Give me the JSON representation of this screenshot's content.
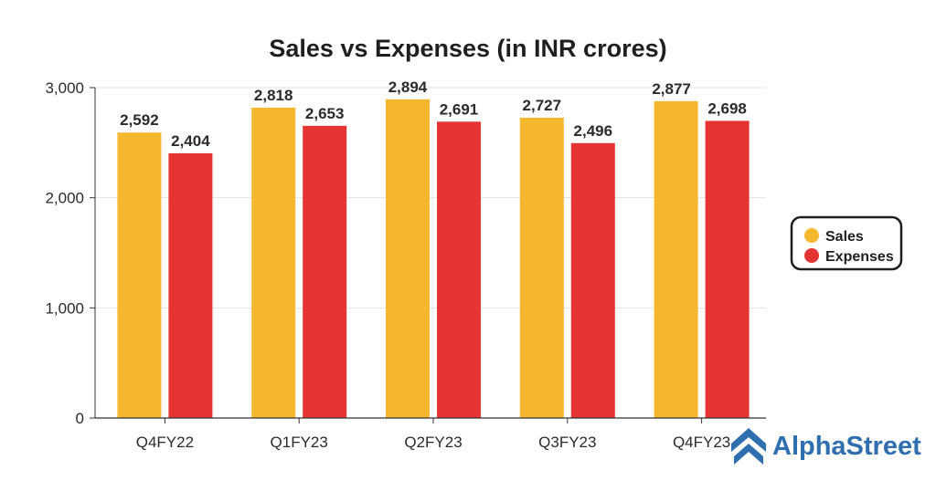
{
  "chart_data": {
    "type": "bar",
    "title": "Sales vs Expenses (in INR crores)",
    "categories": [
      "Q4FY22",
      "Q1FY23",
      "Q2FY23",
      "Q3FY23",
      "Q4FY23"
    ],
    "series": [
      {
        "name": "Sales",
        "color": "#f5b72d",
        "values": [
          2592,
          2818,
          2894,
          2727,
          2877
        ],
        "labels": [
          "2,592",
          "2,818",
          "2,894",
          "2,727",
          "2,877"
        ]
      },
      {
        "name": "Expenses",
        "color": "#e53433",
        "values": [
          2404,
          2653,
          2691,
          2496,
          2698
        ],
        "labels": [
          "2,404",
          "2,653",
          "2,691",
          "2,496",
          "2,698"
        ]
      }
    ],
    "xlabel": "",
    "ylabel": "",
    "ylim": [
      0,
      3000
    ],
    "yticks": [
      0,
      1000,
      2000,
      3000
    ],
    "ytick_labels": [
      "0",
      "1,000",
      "2,000",
      "3,000"
    ],
    "grid": true,
    "legend_position": "right"
  },
  "branding": {
    "name": "AlphaStreet",
    "color": "#2f6fb0"
  }
}
